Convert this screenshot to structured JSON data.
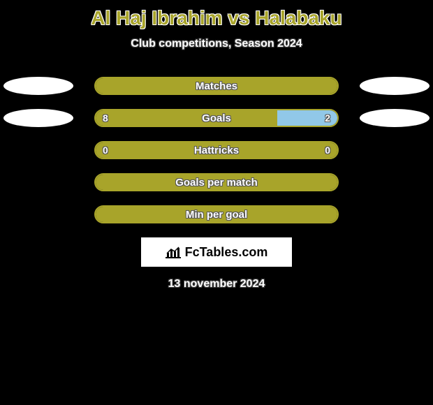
{
  "background_color": "#000000",
  "title": "Al Haj Ibrahim vs Halabaku",
  "title_color": "#a8a42a",
  "subtitle": "Club competitions, Season 2024",
  "player_left": "Al Haj Ibrahim",
  "player_right": "Halabaku",
  "left_color": "#a8a42a",
  "right_color": "#91c8e8",
  "ellipse_color": "#ffffff",
  "rows": [
    {
      "label": "Matches",
      "left_value": "",
      "right_value": "",
      "left_pct": 100,
      "right_pct": 0,
      "show_ellipses": true
    },
    {
      "label": "Goals",
      "left_value": "8",
      "right_value": "2",
      "left_pct": 75,
      "right_pct": 25,
      "show_ellipses": true
    },
    {
      "label": "Hattricks",
      "left_value": "0",
      "right_value": "0",
      "left_pct": 100,
      "right_pct": 0,
      "show_ellipses": false
    },
    {
      "label": "Goals per match",
      "left_value": "",
      "right_value": "",
      "left_pct": 100,
      "right_pct": 0,
      "show_ellipses": false
    },
    {
      "label": "Min per goal",
      "left_value": "",
      "right_value": "",
      "left_pct": 100,
      "right_pct": 0,
      "show_ellipses": false
    }
  ],
  "bar_border_color": "#a8a42a",
  "logo_text": "FcTables.com",
  "date": "13 november 2024"
}
